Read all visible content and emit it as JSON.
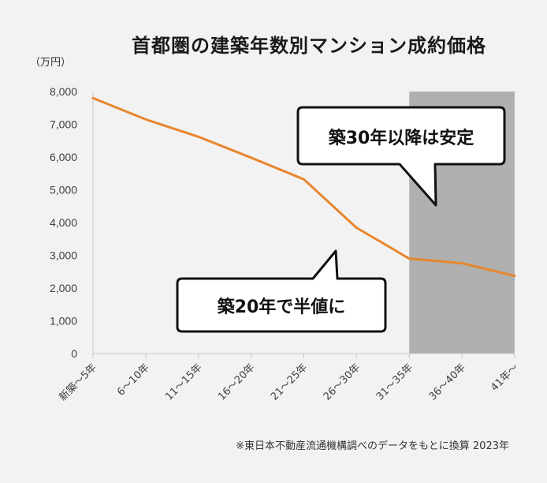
{
  "title": "首都圏の建築年数別マンション成約価格",
  "footnote": "※東日本不動産流通機構調べのデータをもとに換算 2023年",
  "chart_data": {
    "type": "line",
    "title": "首都圏の建築年数別マンション成約価格",
    "ylabel": "（万円）",
    "xlabel": "",
    "categories": [
      "新築〜5年",
      "6〜10年",
      "11〜15年",
      "16〜20年",
      "21〜25年",
      "26〜30年",
      "31〜35年",
      "36〜40年",
      "41年〜"
    ],
    "series": [
      {
        "values": [
          7800,
          7150,
          6620,
          5980,
          5320,
          3840,
          2900,
          2760,
          2370
        ],
        "color": "#e8862e"
      }
    ],
    "ylim": [
      0,
      8000
    ],
    "yticks": [
      0,
      1000,
      2000,
      3000,
      4000,
      5000,
      6000,
      7000,
      8000
    ],
    "ytick_labels": [
      "0",
      "1,000",
      "2,000",
      "3,000",
      "4,000",
      "5,000",
      "6,000",
      "7,000",
      "8,000"
    ],
    "grid": false,
    "shaded_range": {
      "from": "31〜35年",
      "to": "41年〜",
      "color": "#b0b0b0"
    },
    "annotations": [
      {
        "text": "築30年以降は安定"
      },
      {
        "text": "築20年で半値に"
      }
    ]
  }
}
